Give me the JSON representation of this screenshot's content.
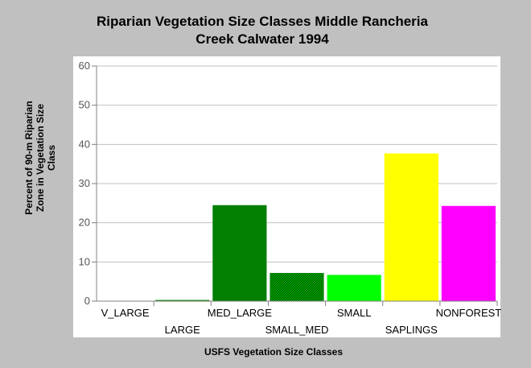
{
  "chart_data": {
    "type": "bar",
    "title_line1": "Riparian Vegetation Size Classes Middle Rancheria",
    "title_line2": "Creek Calwater 1994",
    "xlabel": "USFS Vegetation Size Classes",
    "ylabel_lines": [
      "Percent of 90-m Riparian",
      "Zone in Vegetation Size",
      "Class"
    ],
    "categories": [
      "V_LARGE",
      "LARGE",
      "MED_LARGE",
      "SMALL_MED",
      "SMALL",
      "SAPLINGS",
      "NONFOREST"
    ],
    "values": [
      0,
      0.3,
      24.5,
      7.2,
      6.7,
      37.7,
      24.3
    ],
    "colors": [
      "#808080",
      "#007f00",
      "#007f00",
      "#007f00",
      "#00ff00",
      "#ffff00",
      "#ff00ff"
    ],
    "hatched": [
      false,
      false,
      false,
      true,
      false,
      false,
      false
    ],
    "ylim": [
      0,
      60
    ],
    "yticks": [
      0,
      10,
      20,
      30,
      40,
      50,
      60
    ],
    "grid": true,
    "legend": "none"
  }
}
